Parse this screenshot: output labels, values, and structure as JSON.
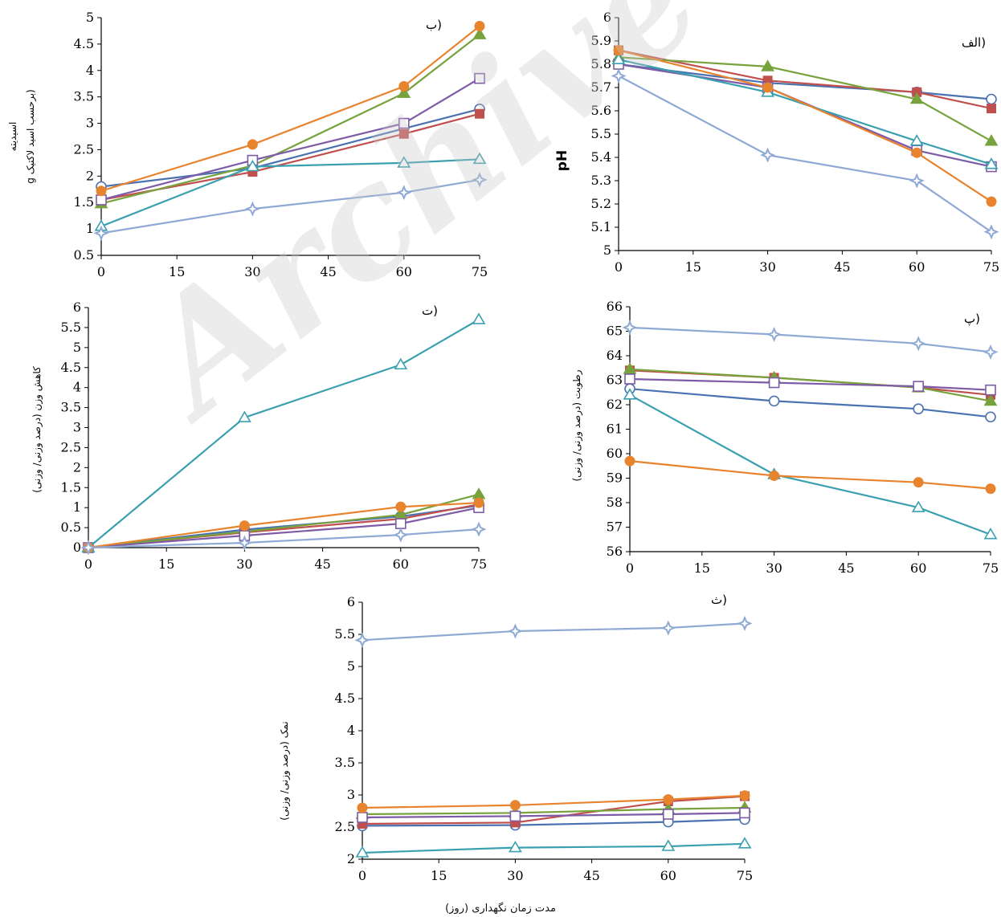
{
  "watermark": "Archive of SID",
  "footer_label": "مدت زمان نگهداری (روز)",
  "colors": {
    "blue_circle": "#4a72b0",
    "red_square": "#c0504d",
    "green_triangle": "#77a23c",
    "purple_square": "#7d5ba6",
    "teal_triangle": "#3aa0b0",
    "orange_circle": "#e8832e",
    "lightblue_star": "#8ea9d4"
  },
  "chart_data": [
    {
      "id": "alef",
      "type": "line",
      "title": "الف)",
      "ylabel": "pH",
      "xlabel": "",
      "x": [
        0,
        30,
        60,
        75
      ],
      "xticks": [
        "0",
        "15",
        "30",
        "45",
        "60",
        "75"
      ],
      "xlim": [
        0,
        75
      ],
      "ylim": [
        5,
        6
      ],
      "yticks": [
        "5",
        "5.1",
        "5.2",
        "5.3",
        "5.4",
        "5.5",
        "5.6",
        "5.7",
        "5.8",
        "5.9",
        "6"
      ],
      "series": [
        {
          "marker": "open-circle",
          "color": "#4a72b0",
          "values": [
            5.8,
            5.72,
            5.68,
            5.65
          ]
        },
        {
          "marker": "filled-square",
          "color": "#c0504d",
          "values": [
            5.86,
            5.73,
            5.68,
            5.61
          ]
        },
        {
          "marker": "filled-triangle",
          "color": "#77a23c",
          "values": [
            5.83,
            5.79,
            5.65,
            5.47
          ]
        },
        {
          "marker": "open-square",
          "color": "#7d5ba6",
          "values": [
            5.8,
            5.7,
            5.43,
            5.36
          ]
        },
        {
          "marker": "open-triangle",
          "color": "#3aa0b0",
          "values": [
            5.82,
            5.68,
            5.47,
            5.37
          ]
        },
        {
          "marker": "filled-circle",
          "color": "#e8832e",
          "values": [
            5.86,
            5.7,
            5.42,
            5.21
          ]
        },
        {
          "marker": "star",
          "color": "#8ea9d4",
          "values": [
            5.75,
            5.41,
            5.3,
            5.08
          ]
        }
      ]
    },
    {
      "id": "be",
      "type": "line",
      "title": "ب)",
      "ylabel": "اسیدیته",
      "ylabel2": "g برحسب اسید لاکتیک)",
      "xlabel": "",
      "x": [
        0,
        30,
        60,
        75
      ],
      "xticks": [
        "0",
        "15",
        "30",
        "45",
        "60",
        "75"
      ],
      "xlim": [
        0,
        75
      ],
      "ylim": [
        0.5,
        5
      ],
      "yticks": [
        "0.5",
        "1",
        "1.5",
        "2",
        "2.5",
        "3",
        "3.5",
        "4",
        "4.5",
        "5"
      ],
      "series": [
        {
          "marker": "open-circle",
          "color": "#4a72b0",
          "values": [
            1.8,
            2.15,
            2.9,
            3.27
          ]
        },
        {
          "marker": "filled-square",
          "color": "#c0504d",
          "values": [
            1.55,
            2.08,
            2.8,
            3.18
          ]
        },
        {
          "marker": "filled-triangle",
          "color": "#77a23c",
          "values": [
            1.48,
            2.2,
            3.57,
            4.68
          ]
        },
        {
          "marker": "open-square",
          "color": "#7d5ba6",
          "values": [
            1.55,
            2.3,
            3.0,
            3.85
          ]
        },
        {
          "marker": "open-triangle",
          "color": "#3aa0b0",
          "values": [
            1.05,
            2.18,
            2.25,
            2.32
          ]
        },
        {
          "marker": "filled-circle",
          "color": "#e8832e",
          "values": [
            1.72,
            2.6,
            3.7,
            4.84
          ]
        },
        {
          "marker": "star",
          "color": "#8ea9d4",
          "values": [
            0.92,
            1.38,
            1.69,
            1.93
          ]
        }
      ]
    },
    {
      "id": "pe",
      "type": "line",
      "title": "پ)",
      "ylabel": "رطوبت (درصد وزنی/ وزنی)",
      "xlabel": "",
      "x": [
        0,
        30,
        60,
        75
      ],
      "xticks": [
        "0",
        "15",
        "30",
        "45",
        "60",
        "75"
      ],
      "xlim": [
        0,
        75
      ],
      "ylim": [
        56,
        66
      ],
      "yticks": [
        "56",
        "57",
        "58",
        "59",
        "60",
        "61",
        "62",
        "63",
        "64",
        "65",
        "66"
      ],
      "series": [
        {
          "marker": "open-circle",
          "color": "#4a72b0",
          "values": [
            62.65,
            62.15,
            61.83,
            61.5
          ]
        },
        {
          "marker": "filled-square",
          "color": "#c0504d",
          "values": [
            63.4,
            63.1,
            62.7,
            62.4
          ]
        },
        {
          "marker": "filled-triangle",
          "color": "#77a23c",
          "values": [
            63.45,
            63.1,
            62.7,
            62.15
          ]
        },
        {
          "marker": "open-square",
          "color": "#7d5ba6",
          "values": [
            63.05,
            62.9,
            62.75,
            62.6
          ]
        },
        {
          "marker": "open-triangle",
          "color": "#3aa0b0",
          "values": [
            62.4,
            59.15,
            57.8,
            56.7
          ]
        },
        {
          "marker": "filled-circle",
          "color": "#e8832e",
          "values": [
            59.7,
            59.1,
            58.83,
            58.57
          ]
        },
        {
          "marker": "star",
          "color": "#8ea9d4",
          "values": [
            65.15,
            64.87,
            64.5,
            64.15
          ]
        }
      ]
    },
    {
      "id": "te",
      "type": "line",
      "title": "ت)",
      "ylabel": "کاهش وزن (درصد وزنی/ وزنی)",
      "xlabel": "",
      "x": [
        0,
        30,
        60,
        75
      ],
      "xticks": [
        "0",
        "15",
        "30",
        "45",
        "60",
        "75"
      ],
      "xlim": [
        0,
        75
      ],
      "ylim": [
        0,
        6
      ],
      "yticks": [
        "0",
        "0.5",
        "1",
        "1.5",
        "2",
        "2.5",
        "3",
        "3.5",
        "4",
        "4.5",
        "5",
        "5.5",
        "6"
      ],
      "series": [
        {
          "marker": "open-circle",
          "color": "#4a72b0",
          "values": [
            0,
            0.45,
            0.78,
            1.05
          ]
        },
        {
          "marker": "filled-square",
          "color": "#c0504d",
          "values": [
            0,
            0.38,
            0.72,
            1.08
          ]
        },
        {
          "marker": "filled-triangle",
          "color": "#77a23c",
          "values": [
            0,
            0.4,
            0.82,
            1.33
          ]
        },
        {
          "marker": "open-square",
          "color": "#7d5ba6",
          "values": [
            0,
            0.3,
            0.6,
            1.0
          ]
        },
        {
          "marker": "open-triangle",
          "color": "#3aa0b0",
          "values": [
            0,
            3.25,
            4.57,
            5.7
          ]
        },
        {
          "marker": "filled-circle",
          "color": "#e8832e",
          "values": [
            0,
            0.55,
            1.02,
            1.12
          ]
        },
        {
          "marker": "star",
          "color": "#8ea9d4",
          "values": [
            0,
            0.12,
            0.32,
            0.46
          ]
        }
      ]
    },
    {
      "id": "se",
      "type": "line",
      "title": "ث)",
      "ylabel": "نمک (درصد وزنی/ وزنی)",
      "xlabel": "",
      "x": [
        0,
        30,
        60,
        75
      ],
      "xticks": [
        "0",
        "15",
        "30",
        "45",
        "60",
        "75"
      ],
      "xlim": [
        0,
        75
      ],
      "ylim": [
        2,
        6
      ],
      "yticks": [
        "2",
        "2.5",
        "3",
        "3.5",
        "4",
        "4.5",
        "5",
        "5.5",
        "6"
      ],
      "series": [
        {
          "marker": "open-circle",
          "color": "#4a72b0",
          "values": [
            2.52,
            2.53,
            2.58,
            2.62
          ]
        },
        {
          "marker": "filled-square",
          "color": "#c0504d",
          "values": [
            2.55,
            2.57,
            2.9,
            2.98
          ]
        },
        {
          "marker": "filled-triangle",
          "color": "#77a23c",
          "values": [
            2.7,
            2.72,
            2.78,
            2.8
          ]
        },
        {
          "marker": "open-square",
          "color": "#7d5ba6",
          "values": [
            2.65,
            2.67,
            2.7,
            2.72
          ]
        },
        {
          "marker": "open-triangle",
          "color": "#3aa0b0",
          "values": [
            2.1,
            2.18,
            2.2,
            2.24
          ]
        },
        {
          "marker": "filled-circle",
          "color": "#e8832e",
          "values": [
            2.8,
            2.84,
            2.93,
            2.99
          ]
        },
        {
          "marker": "star",
          "color": "#8ea9d4",
          "values": [
            5.41,
            5.55,
            5.6,
            5.67
          ]
        }
      ]
    }
  ]
}
